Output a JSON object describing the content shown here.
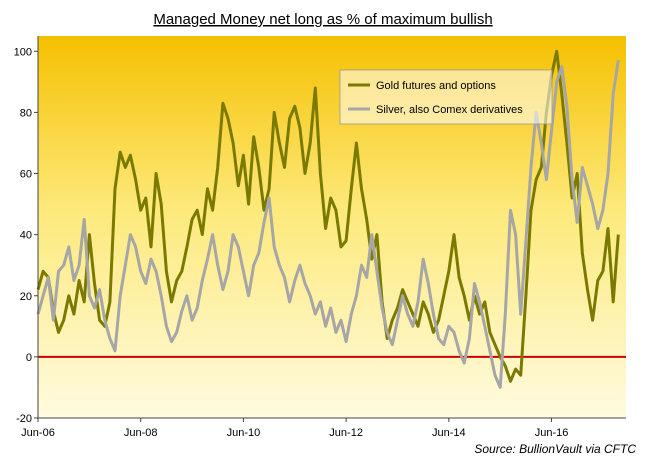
{
  "chart_data": {
    "type": "line",
    "title": "Managed Money net long as % of maximum bullish",
    "source_label": "Source:",
    "source_value": "BullionVault via CFTC",
    "ylim": [
      -20,
      105
    ],
    "yticks": [
      -20,
      0,
      20,
      40,
      60,
      80,
      100
    ],
    "xlim": [
      2006.5,
      2017.95
    ],
    "xticks": [
      {
        "label": "Jun-06",
        "x": 2006.5
      },
      {
        "label": "Jun-08",
        "x": 2008.5
      },
      {
        "label": "Jun-10",
        "x": 2010.5
      },
      {
        "label": "Jun-12",
        "x": 2012.5
      },
      {
        "label": "Jun-14",
        "x": 2014.5
      },
      {
        "label": "Jun-16",
        "x": 2016.5
      }
    ],
    "zero_line_color": "#d00000",
    "legend_position": "top-right",
    "series": [
      {
        "name": "Gold futures and options",
        "color": "#7a7a00",
        "points": [
          [
            2006.5,
            22
          ],
          [
            2006.6,
            28
          ],
          [
            2006.7,
            26
          ],
          [
            2006.8,
            15
          ],
          [
            2006.9,
            8
          ],
          [
            2007.0,
            12
          ],
          [
            2007.1,
            20
          ],
          [
            2007.2,
            14
          ],
          [
            2007.3,
            25
          ],
          [
            2007.4,
            18
          ],
          [
            2007.5,
            40
          ],
          [
            2007.6,
            24
          ],
          [
            2007.7,
            12
          ],
          [
            2007.8,
            10
          ],
          [
            2007.9,
            18
          ],
          [
            2008.0,
            55
          ],
          [
            2008.1,
            67
          ],
          [
            2008.2,
            62
          ],
          [
            2008.3,
            66
          ],
          [
            2008.4,
            58
          ],
          [
            2008.5,
            48
          ],
          [
            2008.6,
            52
          ],
          [
            2008.7,
            36
          ],
          [
            2008.8,
            60
          ],
          [
            2008.9,
            50
          ],
          [
            2009.0,
            28
          ],
          [
            2009.1,
            18
          ],
          [
            2009.2,
            25
          ],
          [
            2009.3,
            28
          ],
          [
            2009.4,
            36
          ],
          [
            2009.5,
            45
          ],
          [
            2009.6,
            48
          ],
          [
            2009.7,
            40
          ],
          [
            2009.8,
            55
          ],
          [
            2009.9,
            48
          ],
          [
            2010.0,
            62
          ],
          [
            2010.1,
            83
          ],
          [
            2010.2,
            78
          ],
          [
            2010.3,
            70
          ],
          [
            2010.4,
            56
          ],
          [
            2010.5,
            66
          ],
          [
            2010.6,
            50
          ],
          [
            2010.7,
            72
          ],
          [
            2010.8,
            62
          ],
          [
            2010.9,
            48
          ],
          [
            2011.0,
            55
          ],
          [
            2011.1,
            80
          ],
          [
            2011.2,
            70
          ],
          [
            2011.3,
            62
          ],
          [
            2011.4,
            78
          ],
          [
            2011.5,
            82
          ],
          [
            2011.6,
            75
          ],
          [
            2011.7,
            60
          ],
          [
            2011.8,
            70
          ],
          [
            2011.9,
            88
          ],
          [
            2012.0,
            60
          ],
          [
            2012.1,
            42
          ],
          [
            2012.2,
            52
          ],
          [
            2012.3,
            48
          ],
          [
            2012.4,
            36
          ],
          [
            2012.5,
            38
          ],
          [
            2012.6,
            55
          ],
          [
            2012.7,
            70
          ],
          [
            2012.8,
            55
          ],
          [
            2012.9,
            45
          ],
          [
            2013.0,
            32
          ],
          [
            2013.1,
            40
          ],
          [
            2013.2,
            18
          ],
          [
            2013.3,
            6
          ],
          [
            2013.4,
            12
          ],
          [
            2013.5,
            16
          ],
          [
            2013.6,
            22
          ],
          [
            2013.7,
            18
          ],
          [
            2013.8,
            14
          ],
          [
            2013.9,
            10
          ],
          [
            2014.0,
            18
          ],
          [
            2014.1,
            14
          ],
          [
            2014.2,
            8
          ],
          [
            2014.3,
            12
          ],
          [
            2014.4,
            20
          ],
          [
            2014.5,
            28
          ],
          [
            2014.6,
            40
          ],
          [
            2014.7,
            26
          ],
          [
            2014.8,
            20
          ],
          [
            2014.9,
            12
          ],
          [
            2015.0,
            20
          ],
          [
            2015.1,
            14
          ],
          [
            2015.2,
            18
          ],
          [
            2015.3,
            8
          ],
          [
            2015.4,
            4
          ],
          [
            2015.5,
            0
          ],
          [
            2015.6,
            -3
          ],
          [
            2015.7,
            -8
          ],
          [
            2015.8,
            -4
          ],
          [
            2015.9,
            -6
          ],
          [
            2016.0,
            20
          ],
          [
            2016.1,
            48
          ],
          [
            2016.2,
            58
          ],
          [
            2016.3,
            62
          ],
          [
            2016.4,
            80
          ],
          [
            2016.5,
            92
          ],
          [
            2016.6,
            100
          ],
          [
            2016.7,
            86
          ],
          [
            2016.8,
            70
          ],
          [
            2016.9,
            52
          ],
          [
            2017.0,
            60
          ],
          [
            2017.1,
            34
          ],
          [
            2017.2,
            22
          ],
          [
            2017.3,
            12
          ],
          [
            2017.4,
            25
          ],
          [
            2017.5,
            28
          ],
          [
            2017.6,
            42
          ],
          [
            2017.7,
            18
          ],
          [
            2017.8,
            40
          ]
        ]
      },
      {
        "name": "Silver, also Comex derivatives",
        "color": "#a6a6a6",
        "points": [
          [
            2006.5,
            14
          ],
          [
            2006.6,
            20
          ],
          [
            2006.7,
            26
          ],
          [
            2006.8,
            12
          ],
          [
            2006.9,
            28
          ],
          [
            2007.0,
            30
          ],
          [
            2007.1,
            36
          ],
          [
            2007.2,
            25
          ],
          [
            2007.3,
            30
          ],
          [
            2007.4,
            45
          ],
          [
            2007.5,
            20
          ],
          [
            2007.6,
            16
          ],
          [
            2007.7,
            22
          ],
          [
            2007.8,
            12
          ],
          [
            2007.9,
            6
          ],
          [
            2008.0,
            2
          ],
          [
            2008.1,
            20
          ],
          [
            2008.2,
            30
          ],
          [
            2008.3,
            40
          ],
          [
            2008.4,
            36
          ],
          [
            2008.5,
            28
          ],
          [
            2008.6,
            24
          ],
          [
            2008.7,
            32
          ],
          [
            2008.8,
            28
          ],
          [
            2008.9,
            20
          ],
          [
            2009.0,
            10
          ],
          [
            2009.1,
            5
          ],
          [
            2009.2,
            8
          ],
          [
            2009.3,
            15
          ],
          [
            2009.4,
            20
          ],
          [
            2009.5,
            12
          ],
          [
            2009.6,
            16
          ],
          [
            2009.7,
            25
          ],
          [
            2009.8,
            32
          ],
          [
            2009.9,
            40
          ],
          [
            2010.0,
            30
          ],
          [
            2010.1,
            22
          ],
          [
            2010.2,
            28
          ],
          [
            2010.3,
            40
          ],
          [
            2010.4,
            36
          ],
          [
            2010.5,
            28
          ],
          [
            2010.6,
            20
          ],
          [
            2010.7,
            30
          ],
          [
            2010.8,
            34
          ],
          [
            2010.9,
            44
          ],
          [
            2011.0,
            52
          ],
          [
            2011.1,
            36
          ],
          [
            2011.2,
            30
          ],
          [
            2011.3,
            26
          ],
          [
            2011.4,
            18
          ],
          [
            2011.5,
            25
          ],
          [
            2011.6,
            30
          ],
          [
            2011.7,
            24
          ],
          [
            2011.8,
            20
          ],
          [
            2011.9,
            14
          ],
          [
            2012.0,
            18
          ],
          [
            2012.1,
            10
          ],
          [
            2012.2,
            16
          ],
          [
            2012.3,
            8
          ],
          [
            2012.4,
            12
          ],
          [
            2012.5,
            5
          ],
          [
            2012.6,
            14
          ],
          [
            2012.7,
            20
          ],
          [
            2012.8,
            30
          ],
          [
            2012.9,
            26
          ],
          [
            2013.0,
            40
          ],
          [
            2013.1,
            28
          ],
          [
            2013.2,
            16
          ],
          [
            2013.3,
            8
          ],
          [
            2013.4,
            4
          ],
          [
            2013.5,
            12
          ],
          [
            2013.6,
            20
          ],
          [
            2013.7,
            14
          ],
          [
            2013.8,
            10
          ],
          [
            2013.9,
            18
          ],
          [
            2014.0,
            32
          ],
          [
            2014.1,
            24
          ],
          [
            2014.2,
            14
          ],
          [
            2014.3,
            6
          ],
          [
            2014.4,
            4
          ],
          [
            2014.5,
            10
          ],
          [
            2014.6,
            8
          ],
          [
            2014.7,
            2
          ],
          [
            2014.8,
            -2
          ],
          [
            2014.9,
            6
          ],
          [
            2015.0,
            24
          ],
          [
            2015.1,
            18
          ],
          [
            2015.2,
            10
          ],
          [
            2015.3,
            2
          ],
          [
            2015.4,
            -6
          ],
          [
            2015.5,
            -10
          ],
          [
            2015.6,
            14
          ],
          [
            2015.7,
            48
          ],
          [
            2015.8,
            40
          ],
          [
            2015.9,
            14
          ],
          [
            2016.0,
            38
          ],
          [
            2016.1,
            62
          ],
          [
            2016.2,
            80
          ],
          [
            2016.3,
            70
          ],
          [
            2016.4,
            58
          ],
          [
            2016.5,
            74
          ],
          [
            2016.6,
            90
          ],
          [
            2016.7,
            95
          ],
          [
            2016.8,
            82
          ],
          [
            2016.9,
            58
          ],
          [
            2017.0,
            44
          ],
          [
            2017.1,
            62
          ],
          [
            2017.2,
            56
          ],
          [
            2017.3,
            50
          ],
          [
            2017.4,
            42
          ],
          [
            2017.5,
            48
          ],
          [
            2017.6,
            60
          ],
          [
            2017.7,
            86
          ],
          [
            2017.8,
            97
          ]
        ]
      }
    ]
  }
}
